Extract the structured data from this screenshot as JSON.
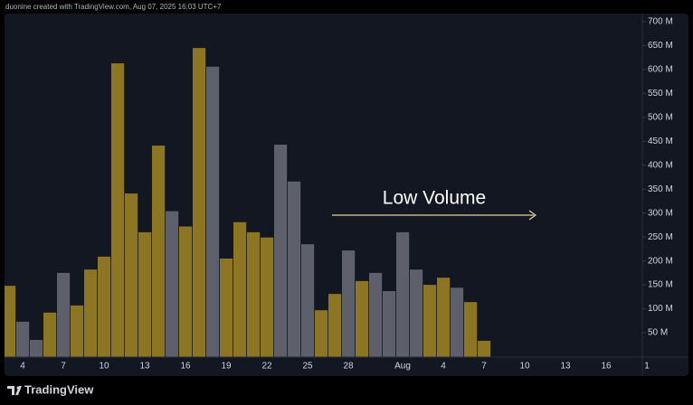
{
  "chart_data": {
    "type": "bar",
    "credit": "duonine created with TradingView.com, Aug 07, 2025 16:03 UTC+7",
    "brand": "TradingView",
    "annotation": "Low Volume",
    "categories": [
      null,
      "4",
      null,
      null,
      "7",
      null,
      null,
      "10",
      null,
      null,
      "13",
      null,
      null,
      "16",
      null,
      null,
      "19",
      null,
      null,
      "22",
      null,
      null,
      "25",
      null,
      null,
      "28",
      null,
      null,
      null,
      "Aug",
      null,
      null,
      "4",
      null,
      null,
      "7",
      null,
      null,
      "10",
      null,
      null,
      "13",
      null,
      null,
      "16",
      null,
      null,
      "1"
    ],
    "values": [
      148,
      73,
      35,
      92,
      175,
      107,
      182,
      209,
      613,
      341,
      260,
      441,
      304,
      272,
      645,
      606,
      205,
      281,
      260,
      249,
      443,
      366,
      235,
      97,
      131,
      222,
      158,
      175,
      137,
      260,
      182,
      150,
      165,
      144,
      114,
      33,
      null,
      null,
      null,
      null,
      null,
      null,
      null,
      null,
      null,
      null,
      null,
      null
    ],
    "colors": [
      "#8c7523",
      "#5d606b",
      "#5d606b",
      "#8c7523",
      "#5d606b",
      "#8c7523",
      "#8c7523",
      "#8c7523",
      "#8c7523",
      "#8c7523",
      "#8c7523",
      "#8c7523",
      "#5d606b",
      "#8c7523",
      "#8c7523",
      "#5d606b",
      "#8c7523",
      "#8c7523",
      "#8c7523",
      "#8c7523",
      "#5d606b",
      "#5d606b",
      "#5d606b",
      "#8c7523",
      "#8c7523",
      "#5d606b",
      "#8c7523",
      "#5d606b",
      "#5d606b",
      "#5d606b",
      "#5d606b",
      "#8c7523",
      "#8c7523",
      "#5d606b",
      "#8c7523",
      "#8c7523",
      null,
      null,
      null,
      null,
      null,
      null,
      null,
      null,
      null,
      null,
      null,
      null
    ],
    "ylim": [
      0,
      717
    ],
    "yticks": [
      {
        "value": 50,
        "label": "50 M"
      },
      {
        "value": 100,
        "label": "100 M"
      },
      {
        "value": 150,
        "label": "150 M"
      },
      {
        "value": 200,
        "label": "200 M"
      },
      {
        "value": 250,
        "label": "250 M"
      },
      {
        "value": 300,
        "label": "300 M"
      },
      {
        "value": 350,
        "label": "350 M"
      },
      {
        "value": 400,
        "label": "400 M"
      },
      {
        "value": 450,
        "label": "450 M"
      },
      {
        "value": 500,
        "label": "500 M"
      },
      {
        "value": 550,
        "label": "550 M"
      },
      {
        "value": 600,
        "label": "600 M"
      },
      {
        "value": 650,
        "label": "650 M"
      },
      {
        "value": 700,
        "label": "700 M"
      }
    ]
  }
}
